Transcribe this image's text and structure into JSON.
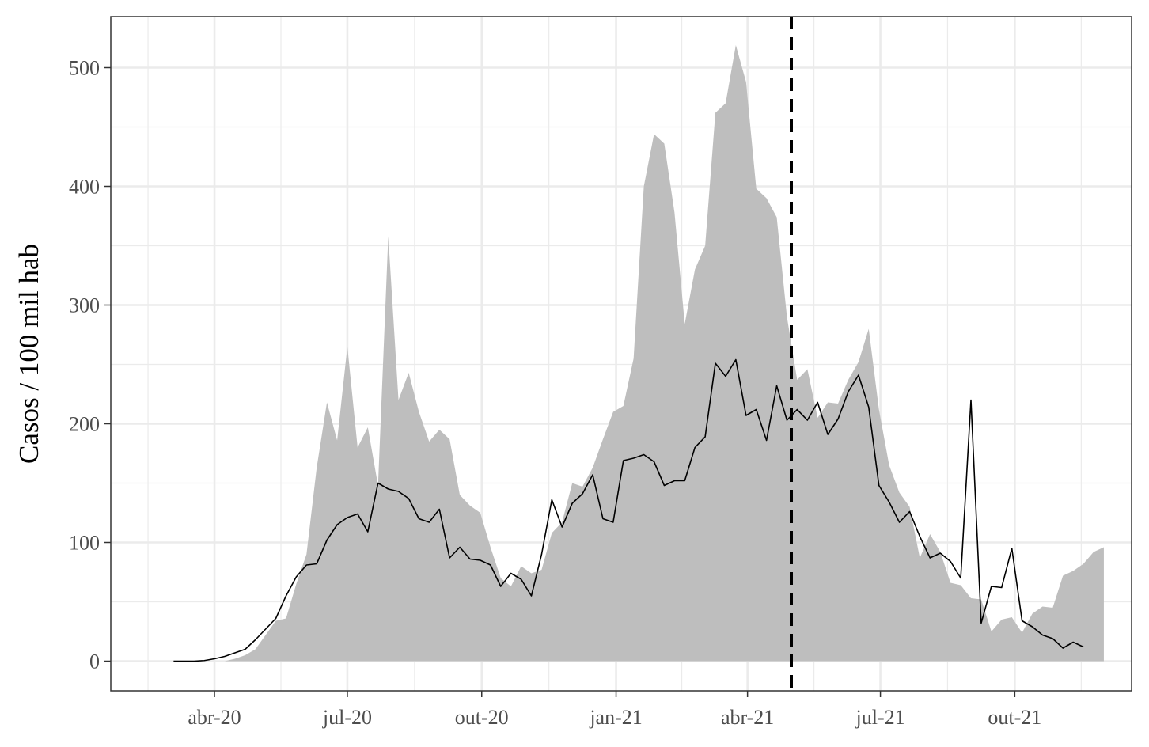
{
  "chart_data": {
    "type": "area",
    "title": "",
    "xlabel": "",
    "ylabel": "Casos / 100 mil hab",
    "x_axis": {
      "type": "date",
      "range": [
        "2020-01-21",
        "2021-12-20"
      ],
      "tick_labels": [
        "abr-20",
        "jul-20",
        "out-20",
        "jan-21",
        "abr-21",
        "jul-21",
        "out-21"
      ],
      "tick_dates": [
        "2020-04-01",
        "2020-07-01",
        "2020-10-01",
        "2021-01-01",
        "2021-04-01",
        "2021-07-01",
        "2021-10-01"
      ]
    },
    "y_axis": {
      "range": [
        -25,
        543
      ],
      "ticks": [
        0,
        100,
        200,
        300,
        400,
        500
      ]
    },
    "grid": true,
    "legend": "none",
    "reference_line": {
      "date": "2021-05-01",
      "style": "dashed",
      "color": "#000000"
    },
    "series": [
      {
        "kind": "area",
        "color": "#bebebe",
        "points": [
          [
            "2020-04-08",
            0
          ],
          [
            "2020-04-15",
            2
          ],
          [
            "2020-04-22",
            5
          ],
          [
            "2020-04-29",
            10
          ],
          [
            "2020-05-06",
            22
          ],
          [
            "2020-05-13",
            34
          ],
          [
            "2020-05-20",
            36
          ],
          [
            "2020-05-27",
            65
          ],
          [
            "2020-06-03",
            90
          ],
          [
            "2020-06-10",
            163
          ],
          [
            "2020-06-17",
            218
          ],
          [
            "2020-06-24",
            186
          ],
          [
            "2020-07-01",
            265
          ],
          [
            "2020-07-08",
            180
          ],
          [
            "2020-07-15",
            197
          ],
          [
            "2020-07-22",
            148
          ],
          [
            "2020-07-29",
            358
          ],
          [
            "2020-08-05",
            220
          ],
          [
            "2020-08-12",
            243
          ],
          [
            "2020-08-19",
            210
          ],
          [
            "2020-08-26",
            185
          ],
          [
            "2020-09-02",
            195
          ],
          [
            "2020-09-09",
            187
          ],
          [
            "2020-09-16",
            140
          ],
          [
            "2020-09-23",
            131
          ],
          [
            "2020-09-30",
            125
          ],
          [
            "2020-10-07",
            96
          ],
          [
            "2020-10-14",
            70
          ],
          [
            "2020-10-21",
            63
          ],
          [
            "2020-10-28",
            80
          ],
          [
            "2020-11-04",
            74
          ],
          [
            "2020-11-11",
            77
          ],
          [
            "2020-11-18",
            108
          ],
          [
            "2020-11-25",
            117
          ],
          [
            "2020-12-02",
            150
          ],
          [
            "2020-12-09",
            147
          ],
          [
            "2020-12-16",
            163
          ],
          [
            "2020-12-23",
            187
          ],
          [
            "2020-12-30",
            210
          ],
          [
            "2021-01-06",
            215
          ],
          [
            "2021-01-13",
            255
          ],
          [
            "2021-01-20",
            400
          ],
          [
            "2021-01-27",
            444
          ],
          [
            "2021-02-03",
            436
          ],
          [
            "2021-02-10",
            378
          ],
          [
            "2021-02-17",
            284
          ],
          [
            "2021-02-24",
            330
          ],
          [
            "2021-03-03",
            350
          ],
          [
            "2021-03-10",
            462
          ],
          [
            "2021-03-17",
            470
          ],
          [
            "2021-03-24",
            519
          ],
          [
            "2021-03-31",
            488
          ],
          [
            "2021-04-07",
            398
          ],
          [
            "2021-04-14",
            390
          ],
          [
            "2021-04-21",
            374
          ],
          [
            "2021-04-28",
            290
          ],
          [
            "2021-05-05",
            237
          ],
          [
            "2021-05-12",
            246
          ],
          [
            "2021-05-19",
            205
          ],
          [
            "2021-05-26",
            218
          ],
          [
            "2021-06-02",
            217
          ],
          [
            "2021-06-09",
            237
          ],
          [
            "2021-06-16",
            252
          ],
          [
            "2021-06-23",
            280
          ],
          [
            "2021-06-30",
            212
          ],
          [
            "2021-07-07",
            165
          ],
          [
            "2021-07-14",
            142
          ],
          [
            "2021-07-21",
            130
          ],
          [
            "2021-07-28",
            87
          ],
          [
            "2021-08-04",
            107
          ],
          [
            "2021-08-11",
            92
          ],
          [
            "2021-08-18",
            66
          ],
          [
            "2021-08-25",
            64
          ],
          [
            "2021-09-01",
            53
          ],
          [
            "2021-09-08",
            52
          ],
          [
            "2021-09-15",
            25
          ],
          [
            "2021-09-22",
            35
          ],
          [
            "2021-09-29",
            37
          ],
          [
            "2021-10-06",
            24
          ],
          [
            "2021-10-13",
            40
          ],
          [
            "2021-10-20",
            46
          ],
          [
            "2021-10-27",
            45
          ],
          [
            "2021-11-03",
            72
          ],
          [
            "2021-11-10",
            76
          ],
          [
            "2021-11-17",
            82
          ],
          [
            "2021-11-24",
            92
          ],
          [
            "2021-12-01",
            96
          ]
        ]
      },
      {
        "kind": "line",
        "color": "#000000",
        "points": [
          [
            "2020-03-04",
            0
          ],
          [
            "2020-03-11",
            0
          ],
          [
            "2020-03-18",
            0
          ],
          [
            "2020-03-25",
            0.5
          ],
          [
            "2020-04-01",
            2
          ],
          [
            "2020-04-08",
            4
          ],
          [
            "2020-04-15",
            7
          ],
          [
            "2020-04-22",
            10
          ],
          [
            "2020-04-29",
            18
          ],
          [
            "2020-05-06",
            27
          ],
          [
            "2020-05-13",
            36
          ],
          [
            "2020-05-20",
            55
          ],
          [
            "2020-05-27",
            71
          ],
          [
            "2020-06-03",
            81
          ],
          [
            "2020-06-10",
            82
          ],
          [
            "2020-06-17",
            102
          ],
          [
            "2020-06-24",
            115
          ],
          [
            "2020-07-01",
            121
          ],
          [
            "2020-07-08",
            124
          ],
          [
            "2020-07-15",
            109
          ],
          [
            "2020-07-22",
            150
          ],
          [
            "2020-07-29",
            145
          ],
          [
            "2020-08-05",
            143
          ],
          [
            "2020-08-12",
            137
          ],
          [
            "2020-08-19",
            120
          ],
          [
            "2020-08-26",
            117
          ],
          [
            "2020-09-02",
            128
          ],
          [
            "2020-09-09",
            87
          ],
          [
            "2020-09-16",
            96
          ],
          [
            "2020-09-23",
            86
          ],
          [
            "2020-09-30",
            85
          ],
          [
            "2020-10-07",
            81
          ],
          [
            "2020-10-14",
            63
          ],
          [
            "2020-10-21",
            74
          ],
          [
            "2020-10-28",
            69
          ],
          [
            "2020-11-04",
            55
          ],
          [
            "2020-11-11",
            90
          ],
          [
            "2020-11-18",
            136
          ],
          [
            "2020-11-25",
            113
          ],
          [
            "2020-12-02",
            133
          ],
          [
            "2020-12-09",
            141
          ],
          [
            "2020-12-16",
            157
          ],
          [
            "2020-12-23",
            120
          ],
          [
            "2020-12-30",
            117
          ],
          [
            "2021-01-06",
            169
          ],
          [
            "2021-01-13",
            171
          ],
          [
            "2021-01-20",
            174
          ],
          [
            "2021-01-27",
            168
          ],
          [
            "2021-02-03",
            148
          ],
          [
            "2021-02-10",
            152
          ],
          [
            "2021-02-17",
            152
          ],
          [
            "2021-02-24",
            180
          ],
          [
            "2021-03-03",
            189
          ],
          [
            "2021-03-10",
            251
          ],
          [
            "2021-03-17",
            240
          ],
          [
            "2021-03-24",
            254
          ],
          [
            "2021-03-31",
            207
          ],
          [
            "2021-04-07",
            212
          ],
          [
            "2021-04-14",
            186
          ],
          [
            "2021-04-21",
            232
          ],
          [
            "2021-04-28",
            203
          ],
          [
            "2021-05-05",
            212
          ],
          [
            "2021-05-12",
            203
          ],
          [
            "2021-05-19",
            218
          ],
          [
            "2021-05-26",
            191
          ],
          [
            "2021-06-02",
            204
          ],
          [
            "2021-06-09",
            227
          ],
          [
            "2021-06-16",
            241
          ],
          [
            "2021-06-23",
            214
          ],
          [
            "2021-06-30",
            148
          ],
          [
            "2021-07-07",
            134
          ],
          [
            "2021-07-14",
            117
          ],
          [
            "2021-07-21",
            126
          ],
          [
            "2021-07-28",
            105
          ],
          [
            "2021-08-04",
            87
          ],
          [
            "2021-08-11",
            91
          ],
          [
            "2021-08-18",
            84
          ],
          [
            "2021-08-25",
            70
          ],
          [
            "2021-09-01",
            220
          ],
          [
            "2021-09-08",
            32
          ],
          [
            "2021-09-15",
            63
          ],
          [
            "2021-09-22",
            62
          ],
          [
            "2021-09-29",
            95
          ],
          [
            "2021-10-06",
            34
          ],
          [
            "2021-10-13",
            29
          ],
          [
            "2021-10-20",
            22
          ],
          [
            "2021-10-27",
            19
          ],
          [
            "2021-11-03",
            11
          ],
          [
            "2021-11-10",
            16
          ],
          [
            "2021-11-17",
            12
          ]
        ]
      }
    ]
  }
}
